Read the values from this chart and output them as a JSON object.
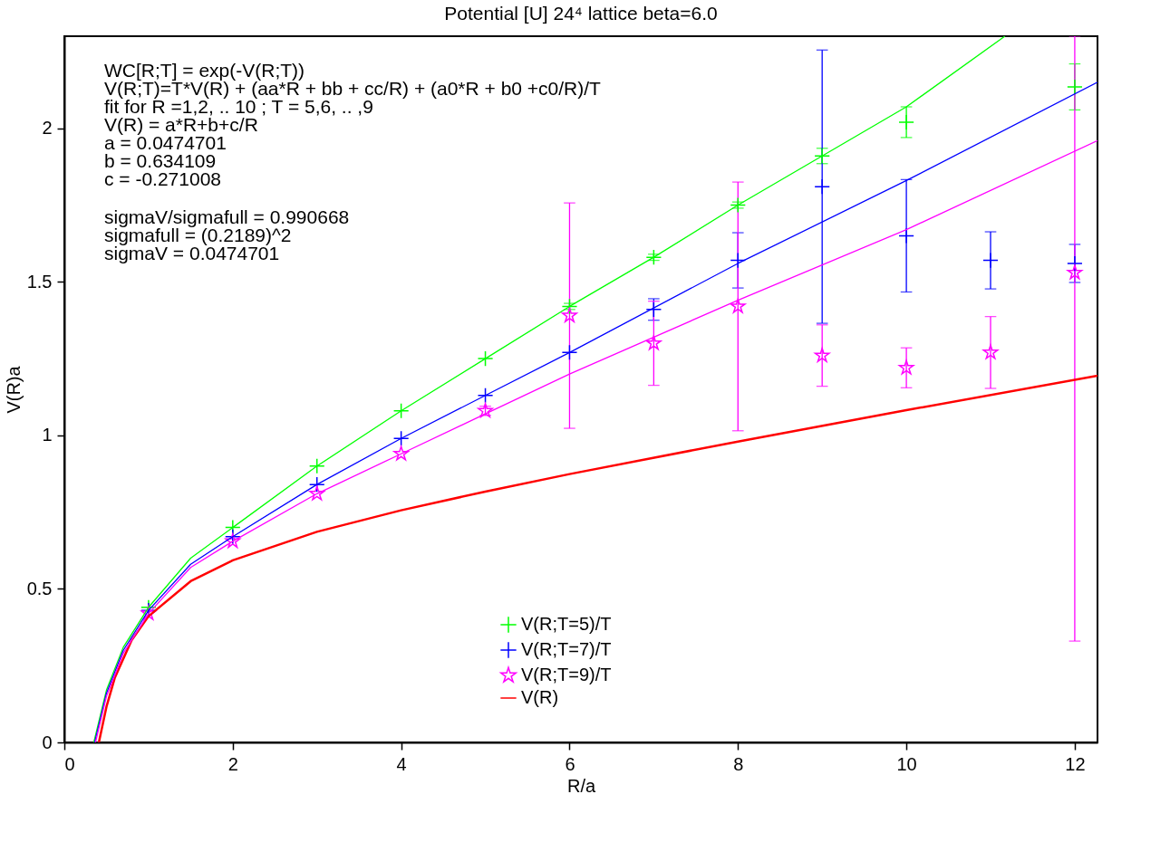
{
  "chart_data": {
    "type": "scatter",
    "title": "Potential [U] 24⁴ lattice beta=6.0",
    "xlabel": "R/a",
    "ylabel": "V(R)a",
    "xlim": [
      0,
      12.27
    ],
    "ylim": [
      0,
      2.3
    ],
    "xticks": [
      0,
      2,
      4,
      6,
      8,
      10,
      12
    ],
    "yticks": [
      0,
      0.5,
      1,
      1.5,
      2
    ],
    "grid": false,
    "legend": "bottom",
    "annotations": [
      "WC[R;T] = exp(-V(R;T))",
      "V(R;T)=T*V(R) + (aa*R + bb + cc/R) + (a0*R + b0 +c0/R)/T",
      "fit for R =1,2, .. 10  ; T = 5,6, .. ,9",
      "V(R) = a*R+b+c/R",
      "a = 0.0474701",
      "b = 0.634109",
      "c = -0.271008",
      "sigmaV/sigmafull = 0.990668",
      "sigmafull = (0.2189)^2",
      "sigmaV   = 0.0474701"
    ],
    "series": [
      {
        "name": "V(R;T=5)/T",
        "type": "scatter",
        "marker": "cross",
        "color": "#00ff00",
        "x": [
          1,
          2,
          3,
          4,
          5,
          6,
          7,
          8,
          9,
          10,
          12
        ],
        "values": [
          0.44,
          0.7,
          0.9,
          1.08,
          1.25,
          1.42,
          1.58,
          1.75,
          1.91,
          2.02,
          2.135
        ],
        "errors": [
          null,
          null,
          null,
          null,
          null,
          0.01,
          0.01,
          0.01,
          0.025,
          0.05,
          0.075
        ]
      },
      {
        "name": "V(R;T=7)/T",
        "type": "scatter",
        "marker": "cross",
        "color": "#0000ff",
        "x": [
          1,
          2,
          3,
          4,
          5,
          6,
          7,
          8,
          9,
          10,
          11,
          12
        ],
        "values": [
          0.43,
          0.67,
          0.84,
          0.99,
          1.13,
          1.27,
          1.41,
          1.57,
          1.81,
          1.65,
          1.57,
          1.56
        ],
        "errors": [
          null,
          null,
          null,
          null,
          null,
          null,
          0.035,
          0.09,
          0.445,
          0.183,
          0.093,
          0.062
        ]
      },
      {
        "name": "V(R;T=9)/T",
        "type": "scatter",
        "marker": "star",
        "color": "#ff00ff",
        "x": [
          1,
          2,
          3,
          4,
          5,
          6,
          7,
          8,
          9,
          10,
          11,
          12
        ],
        "values": [
          0.42,
          0.655,
          0.81,
          0.94,
          1.08,
          1.39,
          1.3,
          1.42,
          1.26,
          1.22,
          1.27,
          1.53
        ],
        "errors": [
          null,
          null,
          null,
          null,
          0.015,
          0.367,
          0.137,
          0.405,
          0.1,
          0.065,
          0.117,
          [
            0.33,
            2.3
          ]
        ]
      },
      {
        "name": "V(R)",
        "type": "line",
        "color": "#ff0000",
        "x": [
          0.41,
          0.5,
          0.6,
          0.8,
          1,
          1.5,
          2,
          3,
          4,
          5,
          6,
          8,
          10,
          12.27
        ],
        "values": [
          0.0,
          0.116,
          0.211,
          0.333,
          0.411,
          0.525,
          0.593,
          0.686,
          0.756,
          0.817,
          0.874,
          0.98,
          1.082,
          1.194
        ]
      },
      {
        "type": "line",
        "color": "#00ff00",
        "x": [
          0.35,
          0.5,
          0.7,
          1,
          1.5,
          2,
          3,
          4,
          5,
          6,
          7,
          8,
          9,
          10,
          11.17
        ],
        "values": [
          0,
          0.17,
          0.31,
          0.44,
          0.6,
          0.7,
          0.9,
          1.08,
          1.25,
          1.42,
          1.58,
          1.75,
          1.91,
          2.07,
          2.3
        ]
      },
      {
        "type": "line",
        "color": "#0000ff",
        "x": [
          0.36,
          0.5,
          0.7,
          1,
          1.5,
          2,
          3,
          4,
          5,
          6,
          8,
          10,
          12.27
        ],
        "values": [
          0,
          0.16,
          0.3,
          0.43,
          0.58,
          0.67,
          0.84,
          0.99,
          1.13,
          1.27,
          1.56,
          1.83,
          2.15
        ]
      },
      {
        "type": "line",
        "color": "#ff00ff",
        "x": [
          0.37,
          0.5,
          0.7,
          1,
          1.5,
          2,
          3,
          4,
          5,
          6,
          8,
          10,
          12.27
        ],
        "values": [
          0,
          0.15,
          0.29,
          0.42,
          0.57,
          0.655,
          0.81,
          0.94,
          1.07,
          1.2,
          1.44,
          1.67,
          1.96
        ]
      }
    ]
  }
}
